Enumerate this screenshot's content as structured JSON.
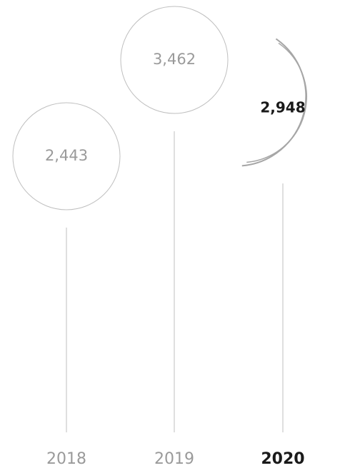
{
  "chart_data": {
    "type": "bubble-timeline",
    "categories": [
      "2018",
      "2019",
      "2020"
    ],
    "values": [
      2443,
      3462,
      2948
    ],
    "value_labels": [
      "2,443",
      "3,462",
      "2,948"
    ],
    "highlight": "2020",
    "colors": {
      "muted_text": "#9a9a9a",
      "active_text": "#1a1a1a",
      "stroke": "#bfbfbf",
      "active_stroke": "#a6a6a6"
    }
  }
}
